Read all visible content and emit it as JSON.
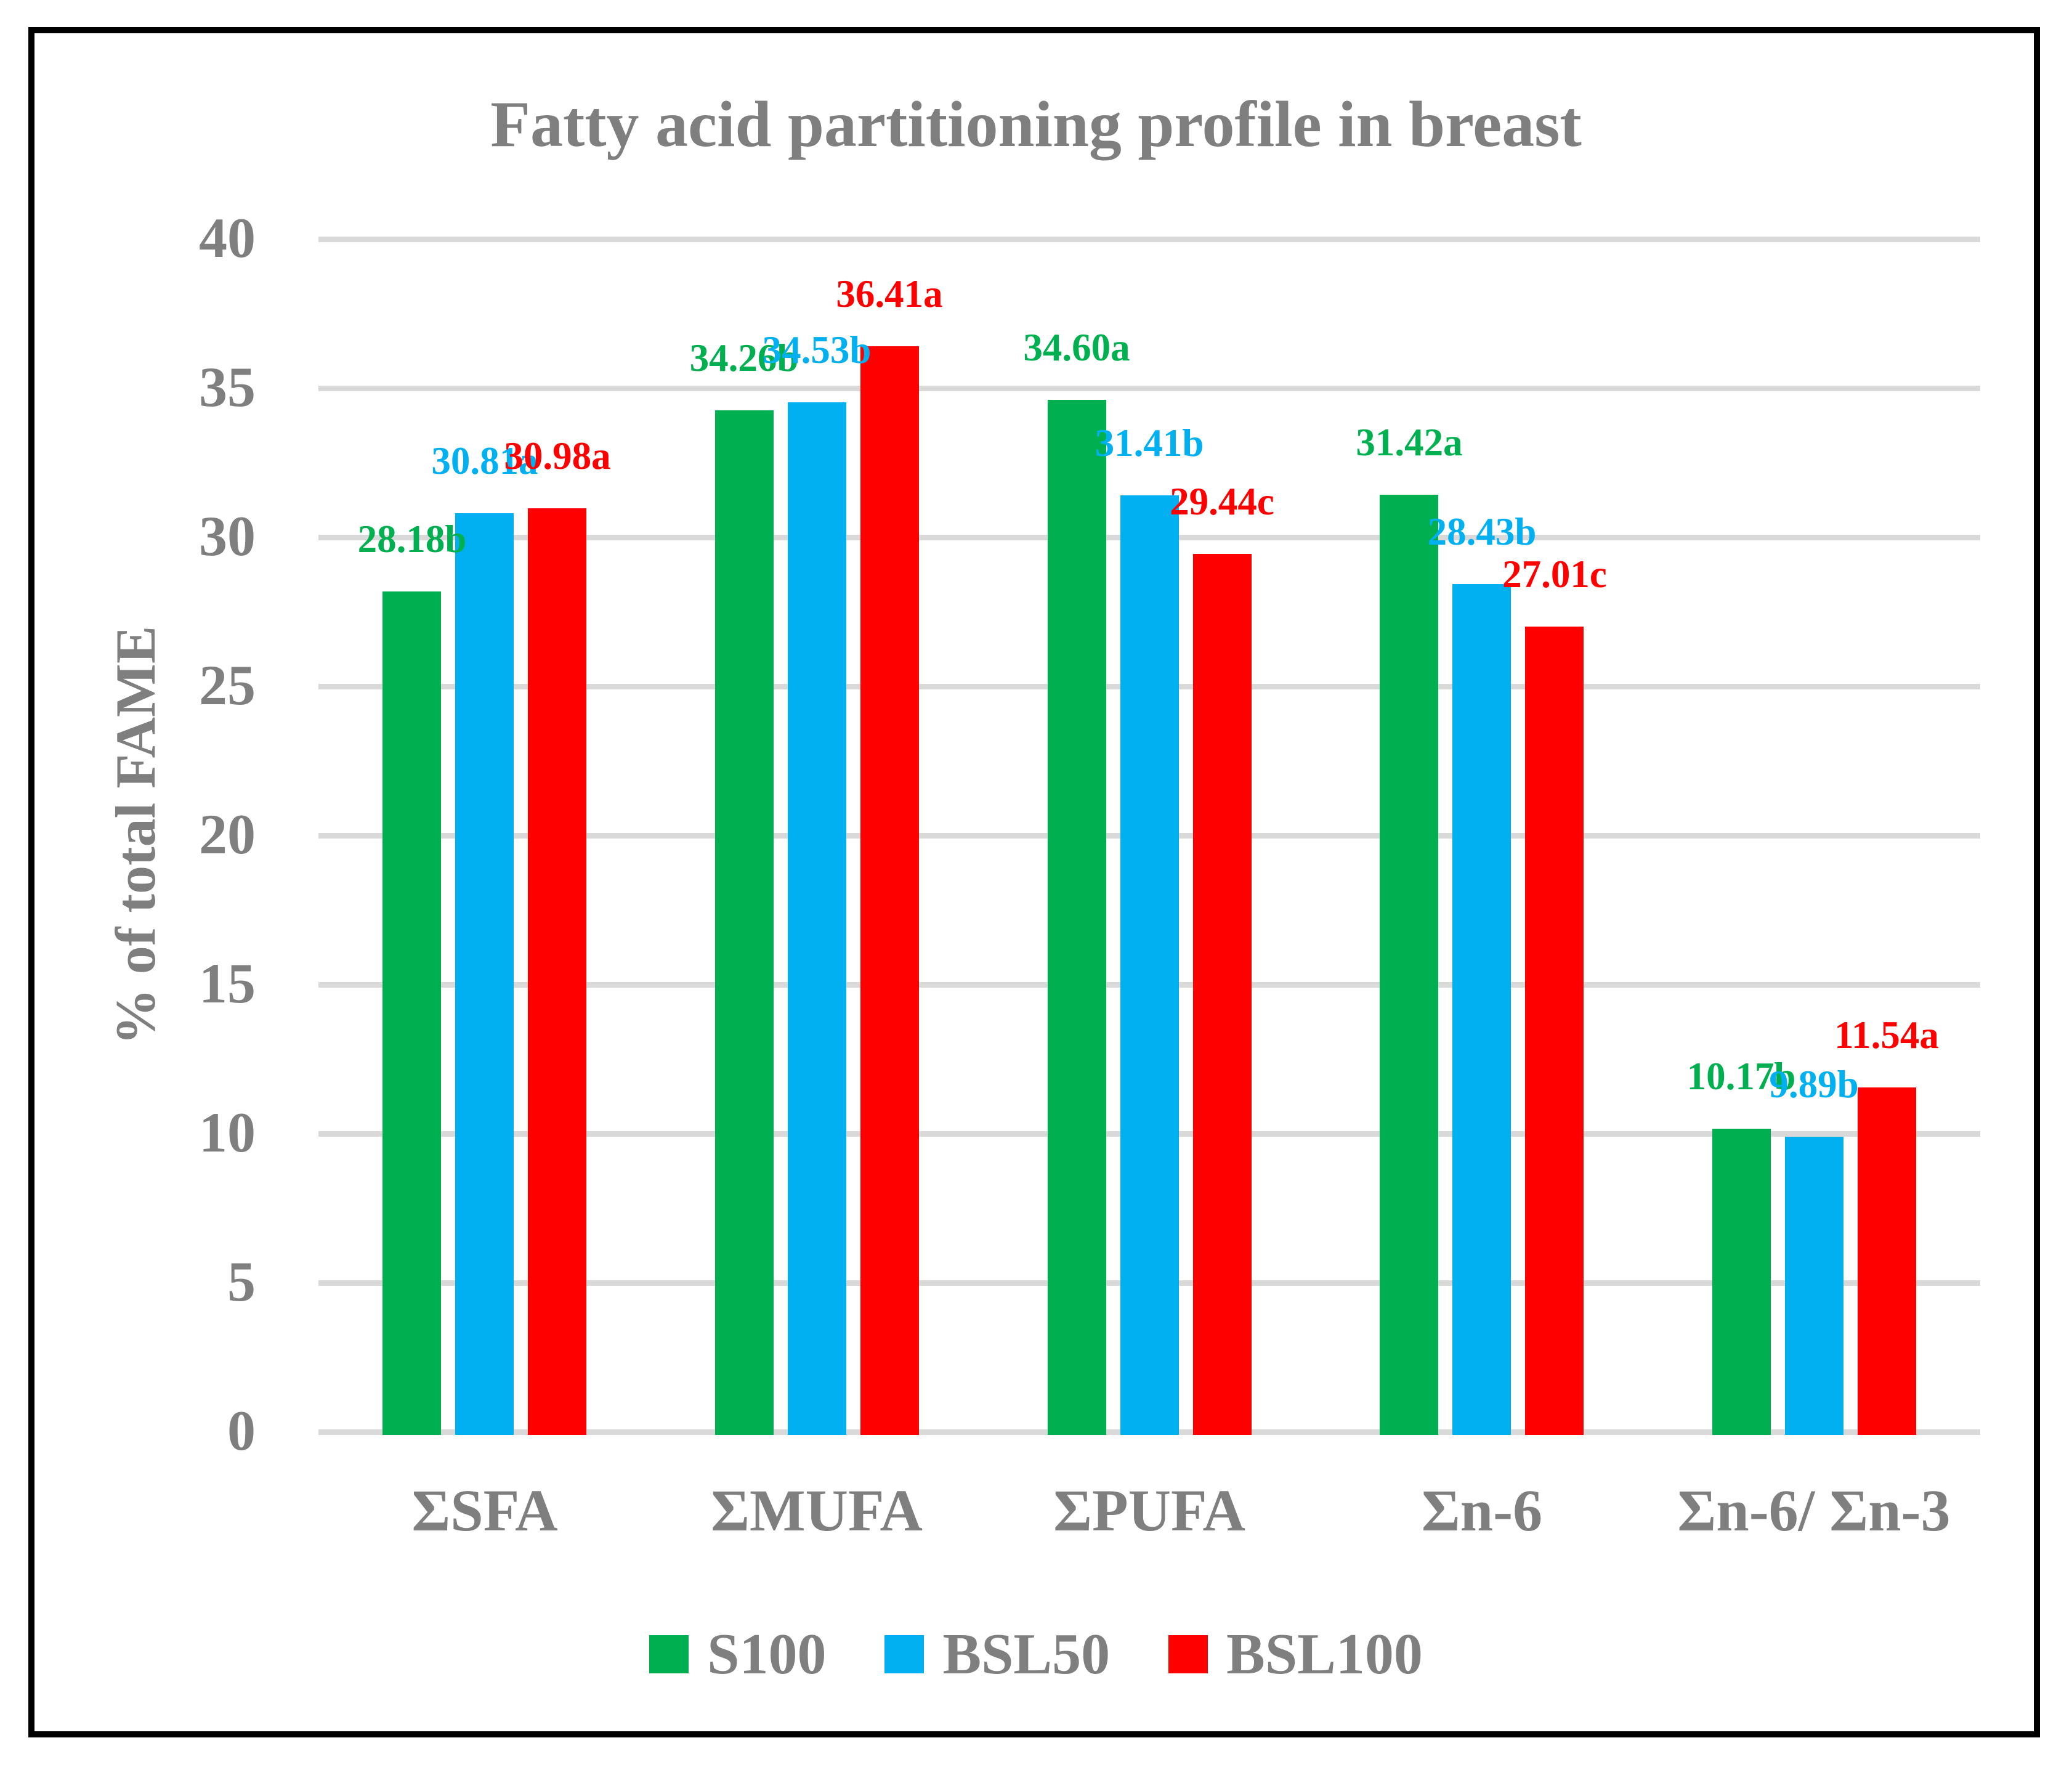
{
  "chart_data": {
    "type": "bar",
    "title": "Fatty acid partitioning profile in breast",
    "ylabel": "% of total FAME",
    "xlabel": "",
    "categories": [
      "ΣSFA",
      "ΣMUFA",
      "ΣPUFA",
      "Σn-6",
      "Σn-6/ Σn-3"
    ],
    "series": [
      {
        "name": "S100",
        "color": "#00B050",
        "values": [
          28.18,
          34.26,
          34.6,
          31.42,
          10.17
        ],
        "point_labels": [
          "28.18b",
          "34.26b",
          "34.60a",
          "31.42a",
          "10.17b"
        ]
      },
      {
        "name": "BSL50",
        "color": "#00B0F0",
        "values": [
          30.81,
          34.53,
          31.41,
          28.43,
          9.89
        ],
        "point_labels": [
          "30.81a",
          "34.53b",
          "31.41b",
          "28.43b",
          "9.89b"
        ]
      },
      {
        "name": "BSL100",
        "color": "#FF0000",
        "values": [
          30.98,
          36.41,
          29.44,
          27.01,
          11.54
        ],
        "point_labels": [
          "30.98a",
          "36.41a",
          "29.44c",
          "27.01c",
          "11.54a"
        ]
      }
    ],
    "ylim": [
      0,
      40
    ],
    "yticks": [
      0,
      5,
      10,
      15,
      20,
      25,
      30,
      35,
      40
    ],
    "grid": true,
    "legend_position": "bottom"
  },
  "colors": {
    "text": "#7f7f7f",
    "gridline": "#d9d9d9",
    "frame": "#000000",
    "background": "#ffffff"
  }
}
